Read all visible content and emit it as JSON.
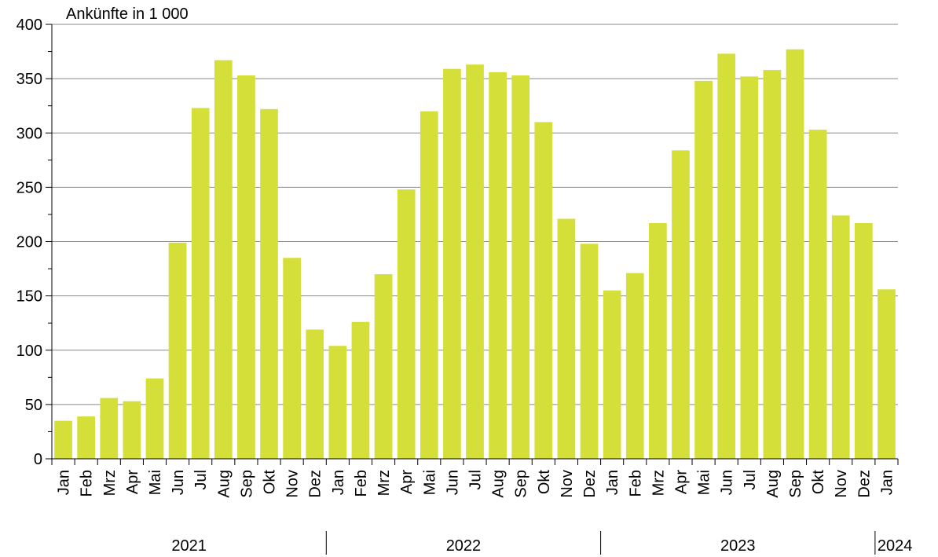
{
  "chart_data": {
    "type": "bar",
    "y_label": "Ankünfte in 1 000",
    "categories": [
      "Jan",
      "Feb",
      "Mrz",
      "Apr",
      "Mai",
      "Jun",
      "Jul",
      "Aug",
      "Sep",
      "Okt",
      "Nov",
      "Dez",
      "Jan",
      "Feb",
      "Mrz",
      "Apr",
      "Mai",
      "Jun",
      "Jul",
      "Aug",
      "Sep",
      "Okt",
      "Nov",
      "Dez",
      "Jan",
      "Feb",
      "Mrz",
      "Apr",
      "Mai",
      "Jun",
      "Jul",
      "Aug",
      "Sep",
      "Okt",
      "Nov",
      "Dez",
      "Jan"
    ],
    "years": [
      "2021",
      "2022",
      "2023",
      "2024"
    ],
    "values": [
      35,
      39,
      56,
      53,
      74,
      199,
      323,
      367,
      353,
      322,
      185,
      119,
      104,
      126,
      170,
      248,
      320,
      359,
      363,
      356,
      353,
      310,
      221,
      198,
      155,
      171,
      217,
      284,
      348,
      373,
      352,
      358,
      377,
      303,
      224,
      217,
      156
    ],
    "color": "#d4df3a",
    "ylim": [
      0,
      400
    ],
    "yticks": [
      0,
      50,
      100,
      150,
      200,
      250,
      300,
      350,
      400
    ],
    "minor_yticks": [
      25,
      75,
      125,
      175,
      225,
      275,
      325,
      375
    ],
    "grid": true
  }
}
